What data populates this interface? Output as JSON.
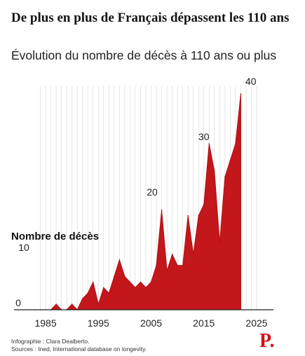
{
  "header": {
    "title": "De plus en plus de Français dépassent les 110 ans",
    "subtitle": "Évolution du nombre de décès à 110 ans ou plus"
  },
  "footer": {
    "credit": "Infographie : Clara Dealberto.",
    "sources": "Sources : Ined, International database on longevity."
  },
  "brand": {
    "logo_text": "P."
  },
  "colors": {
    "area": "#c4171b",
    "area_edge": "#b01014",
    "grid": "#d6d6d6",
    "axis": "#222222"
  },
  "chart_data": {
    "type": "area",
    "title": "De plus en plus de Français dépassent les 110 ans",
    "subtitle": "Évolution du nombre de décès à 110 ans ou plus",
    "ylabel": "Nombre de décès",
    "xlim": [
      1983,
      2025
    ],
    "ylim": [
      0,
      40
    ],
    "xticks": [
      1985,
      1995,
      2005,
      2015,
      2025
    ],
    "yticks": [
      0,
      10,
      20,
      30,
      40
    ],
    "grid": "vertical",
    "x": [
      1983,
      1984,
      1985,
      1986,
      1987,
      1988,
      1989,
      1990,
      1991,
      1992,
      1993,
      1994,
      1995,
      1996,
      1997,
      1998,
      1999,
      2000,
      2001,
      2002,
      2003,
      2004,
      2005,
      2006,
      2007,
      2008,
      2009,
      2010,
      2011,
      2012,
      2013,
      2014,
      2015,
      2016,
      2017,
      2018,
      2019,
      2020,
      2021,
      2022
    ],
    "values": [
      0,
      0,
      0,
      0,
      1,
      0,
      0,
      1,
      0,
      2,
      3,
      5,
      1,
      4,
      3,
      6,
      9,
      6,
      5,
      4,
      5,
      4,
      5,
      8,
      18,
      7,
      10,
      8,
      8,
      17,
      10,
      17,
      19,
      30,
      25,
      12,
      24,
      27,
      30,
      39
    ]
  }
}
